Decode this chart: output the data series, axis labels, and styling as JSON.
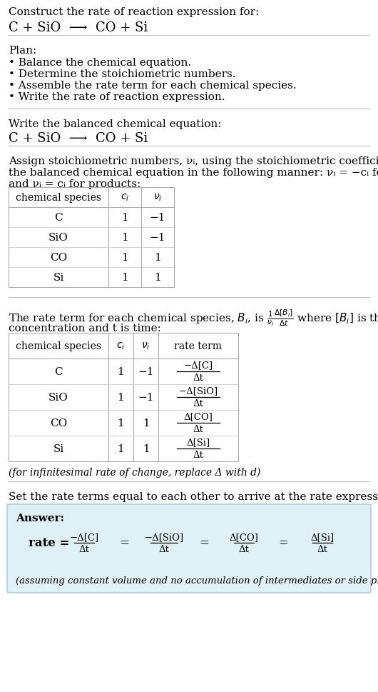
{
  "bg_color": "#ffffff",
  "answer_box_color": "#dff0f7",
  "answer_box_border": "#9fc9d8",
  "text_color": "#000000",
  "line_color": "#bbbbbb",
  "sections": {
    "s1_line1": "Construct the rate of reaction expression for:",
    "s1_line2": "C + SiO  ⟶  CO + Si",
    "plan_header": "Plan:",
    "plan_items": [
      "• Balance the chemical equation.",
      "• Determine the stoichiometric numbers.",
      "• Assemble the rate term for each chemical species.",
      "• Write the rate of reaction expression."
    ],
    "s2_header": "Write the balanced chemical equation:",
    "s2_eq": "C + SiO  ⟶  CO + Si",
    "s3_line1": "Assign stoichiometric numbers, νᵢ, using the stoichiometric coefficients, cᵢ, from",
    "s3_line2": "the balanced chemical equation in the following manner: νᵢ = −cᵢ for reactants",
    "s3_line3": "and νᵢ = cᵢ for products:",
    "t1_species": [
      "C",
      "SiO",
      "CO",
      "Si"
    ],
    "t1_ci": [
      "1",
      "1",
      "1",
      "1"
    ],
    "t1_nu": [
      "−1",
      "−1",
      "1",
      "1"
    ],
    "s4_line1": "The rate term for each chemical species, Bᵢ, is",
    "s4_line2": "concentration and t is time:",
    "t2_species": [
      "C",
      "SiO",
      "CO",
      "Si"
    ],
    "t2_ci": [
      "1",
      "1",
      "1",
      "1"
    ],
    "t2_nu": [
      "−1",
      "−1",
      "1",
      "1"
    ],
    "t2_rate_num": [
      "−Δ[C]",
      "−Δ[SiO]",
      "Δ[CO]",
      "Δ[Si]"
    ],
    "t2_rate_den": [
      "Δt",
      "Δt",
      "Δt",
      "Δt"
    ],
    "infinitesimal": "(for infinitesimal rate of change, replace Δ with d)",
    "s5_header": "Set the rate terms equal to each other to arrive at the rate expression:",
    "answer_label": "Answer:",
    "ans_note": "(assuming constant volume and no accumulation of intermediates or side products)"
  }
}
